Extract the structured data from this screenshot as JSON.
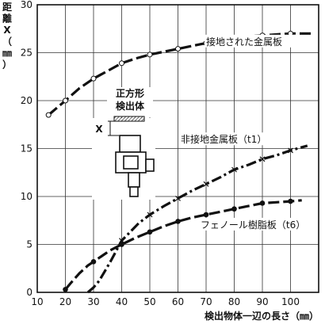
{
  "chart_data": {
    "type": "line",
    "title": "",
    "xlabel": "検出物体一辺の長さ（㎜）",
    "ylabel_chars": [
      "距",
      "離",
      "X",
      "（",
      "㎜",
      "）"
    ],
    "xlim": [
      10,
      110
    ],
    "ylim": [
      0,
      30
    ],
    "x_ticks": [
      10,
      20,
      30,
      40,
      50,
      60,
      70,
      80,
      90,
      100
    ],
    "y_ticks": [
      0,
      5,
      10,
      15,
      20,
      25,
      30
    ],
    "grid": true,
    "series": [
      {
        "name": "接地された金属板",
        "style": "dash",
        "marker": "open-circle",
        "x": [
          14,
          20,
          30,
          40,
          50,
          60,
          70,
          80,
          90,
          100
        ],
        "y": [
          18.5,
          20.0,
          22.3,
          23.9,
          24.8,
          25.4,
          26.0,
          26.5,
          26.8,
          27.0
        ],
        "curve": [
          [
            14,
            18.5
          ],
          [
            20,
            20.0
          ],
          [
            25,
            21.3
          ],
          [
            30,
            22.3
          ],
          [
            35,
            23.1
          ],
          [
            40,
            23.9
          ],
          [
            45,
            24.4
          ],
          [
            50,
            24.8
          ],
          [
            55,
            25.1
          ],
          [
            60,
            25.4
          ],
          [
            65,
            25.7
          ],
          [
            70,
            26.0
          ],
          [
            75,
            26.3
          ],
          [
            80,
            26.5
          ],
          [
            85,
            26.7
          ],
          [
            90,
            26.8
          ],
          [
            95,
            26.9
          ],
          [
            100,
            27.0
          ],
          [
            108,
            27.0
          ]
        ],
        "label_anchor": [
          70,
          25.8
        ]
      },
      {
        "name": "非接地金属板（t1）",
        "style": "dashdot",
        "marker": "x",
        "x": [
          40,
          50,
          60,
          70,
          80,
          90,
          100
        ],
        "y": [
          5.4,
          8.1,
          9.8,
          11.3,
          12.8,
          13.9,
          14.8
        ],
        "curve": [
          [
            28,
            0.0
          ],
          [
            30,
            0.5
          ],
          [
            32,
            1.2
          ],
          [
            34,
            2.2
          ],
          [
            36,
            3.2
          ],
          [
            38,
            4.3
          ],
          [
            40,
            5.4
          ],
          [
            43,
            6.3
          ],
          [
            46,
            7.2
          ],
          [
            50,
            8.1
          ],
          [
            55,
            9.0
          ],
          [
            60,
            9.8
          ],
          [
            65,
            10.6
          ],
          [
            70,
            11.3
          ],
          [
            75,
            12.0
          ],
          [
            80,
            12.8
          ],
          [
            85,
            13.3
          ],
          [
            90,
            13.9
          ],
          [
            95,
            14.3
          ],
          [
            100,
            14.8
          ],
          [
            106,
            15.3
          ]
        ],
        "label_anchor": [
          61,
          15.6
        ]
      },
      {
        "name": "フェノール樹脂板（t6）",
        "style": "dash",
        "marker": "filled-circle",
        "x": [
          20,
          30,
          40,
          50,
          60,
          70,
          80,
          90,
          100
        ],
        "y": [
          0.3,
          3.2,
          5.0,
          6.3,
          7.4,
          8.1,
          8.7,
          9.3,
          9.5
        ],
        "curve": [
          [
            20,
            0.3
          ],
          [
            22,
            1.0
          ],
          [
            25,
            2.0
          ],
          [
            28,
            2.8
          ],
          [
            30,
            3.2
          ],
          [
            33,
            3.8
          ],
          [
            36,
            4.4
          ],
          [
            40,
            5.0
          ],
          [
            45,
            5.7
          ],
          [
            50,
            6.3
          ],
          [
            55,
            6.9
          ],
          [
            60,
            7.4
          ],
          [
            65,
            7.8
          ],
          [
            70,
            8.1
          ],
          [
            75,
            8.4
          ],
          [
            80,
            8.7
          ],
          [
            85,
            9.0
          ],
          [
            90,
            9.3
          ],
          [
            95,
            9.4
          ],
          [
            100,
            9.5
          ],
          [
            104,
            9.6
          ]
        ],
        "label_anchor": [
          68,
          6.7
        ]
      }
    ],
    "inset": {
      "label_lines": [
        "正方形",
        "検出体"
      ],
      "distance_label": "X"
    }
  }
}
